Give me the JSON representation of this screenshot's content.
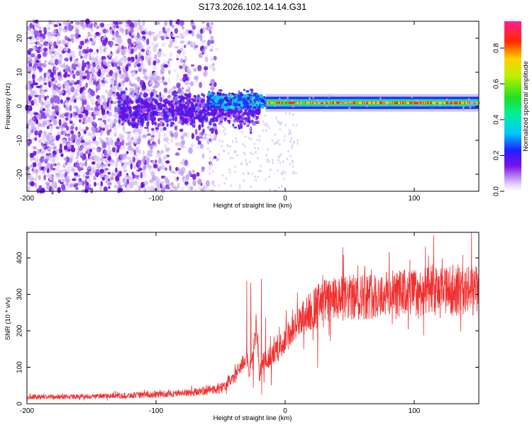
{
  "title": "S173.2026.102.14.14.G31",
  "chart_data": [
    {
      "type": "heatmap",
      "name": "spectrogram",
      "xlabel": "Height of straight line (km)",
      "ylabel": "Frequency (Hz)",
      "xlim": [
        -200,
        150
      ],
      "ylim": [
        -25,
        25
      ],
      "xticks": [
        -200,
        -100,
        0,
        100
      ],
      "yticks": [
        -20,
        -10,
        0,
        10,
        20
      ],
      "colorbar": {
        "label": "Normalized spectral amplitude",
        "range": [
          0.0,
          0.95
        ],
        "ticks": [
          0.0,
          0.2,
          0.4,
          0.6,
          0.8
        ]
      },
      "description_points": {
        "noise_region_x": [
          -200,
          -60
        ],
        "transition_x": [
          -60,
          -15
        ],
        "narrow_line_x": [
          -15,
          150
        ],
        "narrow_line_freq": 1.0
      }
    },
    {
      "type": "line",
      "name": "snr",
      "xlabel": "Height of straight line (km)",
      "ylabel": "SNR (10 * v/v)",
      "xlim": [
        -200,
        150
      ],
      "ylim": [
        0,
        470
      ],
      "xticks": [
        -200,
        -100,
        0,
        100
      ],
      "yticks": [
        0,
        100,
        200,
        300,
        400
      ],
      "color": "#f03030",
      "trend": {
        "x": [
          -200,
          -150,
          -100,
          -70,
          -50,
          -40,
          -35,
          -30,
          -28,
          -25,
          -22,
          -20,
          -18,
          -15,
          -10,
          -5,
          0,
          5,
          10,
          15,
          20,
          25,
          30,
          40,
          50,
          60,
          80,
          100,
          120,
          150
        ],
        "y": [
          18,
          20,
          25,
          32,
          42,
          70,
          100,
          130,
          90,
          120,
          220,
          70,
          110,
          120,
          135,
          150,
          175,
          200,
          215,
          240,
          255,
          270,
          280,
          285,
          290,
          295,
          300,
          305,
          308,
          310
        ]
      }
    }
  ]
}
